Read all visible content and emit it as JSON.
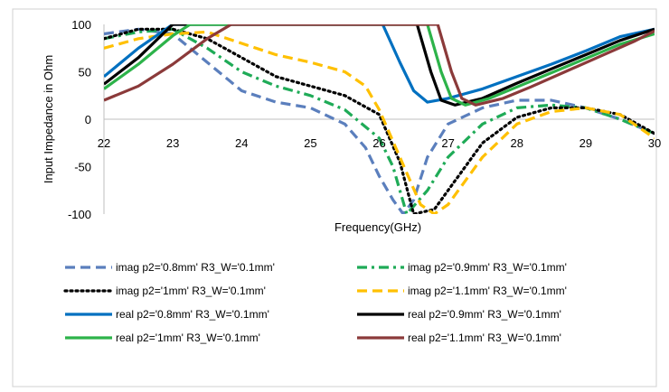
{
  "chart_data": {
    "type": "line",
    "title": "",
    "xlabel": "Frequency(GHz)",
    "ylabel": "Input Impedance in Ohm",
    "xlim": [
      22,
      30
    ],
    "ylim": [
      -100,
      100
    ],
    "xticks": [
      22,
      23,
      24,
      25,
      26,
      27,
      28,
      29,
      30
    ],
    "yticks": [
      -100,
      -50,
      0,
      50,
      100
    ],
    "grid": false,
    "legend_position": "bottom",
    "series": [
      {
        "name": "imag p2='0.8mm' R3_W='0.1mm'",
        "color": "#5b7fbd",
        "dash": "long-dash",
        "points": [
          [
            22,
            90
          ],
          [
            22.5,
            95
          ],
          [
            23,
            90
          ],
          [
            23.5,
            60
          ],
          [
            24,
            30
          ],
          [
            24.5,
            18
          ],
          [
            25,
            12
          ],
          [
            25.5,
            -5
          ],
          [
            25.8,
            -30
          ],
          [
            26,
            -60
          ],
          [
            26.2,
            -85
          ],
          [
            26.35,
            -100
          ],
          [
            26.5,
            -85
          ],
          [
            26.7,
            -40
          ],
          [
            27,
            -5
          ],
          [
            27.5,
            12
          ],
          [
            28,
            20
          ],
          [
            28.5,
            20
          ],
          [
            29,
            12
          ],
          [
            29.5,
            0
          ],
          [
            30,
            -15
          ]
        ]
      },
      {
        "name": "imag p2='0.9mm' R3_W='0.1mm'",
        "color": "#1fab57",
        "dash": "dash-dot",
        "points": [
          [
            22,
            85
          ],
          [
            22.5,
            92
          ],
          [
            23,
            95
          ],
          [
            23.5,
            75
          ],
          [
            24,
            50
          ],
          [
            24.5,
            35
          ],
          [
            25,
            25
          ],
          [
            25.5,
            10
          ],
          [
            26,
            -20
          ],
          [
            26.2,
            -50
          ],
          [
            26.4,
            -100
          ],
          [
            26.7,
            -75
          ],
          [
            27,
            -40
          ],
          [
            27.5,
            -5
          ],
          [
            28,
            12
          ],
          [
            28.5,
            15
          ],
          [
            29,
            12
          ],
          [
            29.5,
            0
          ],
          [
            30,
            -15
          ]
        ]
      },
      {
        "name": "imag p2='1mm' R3_W='0.1mm'",
        "color": "#000000",
        "dash": "dotted",
        "points": [
          [
            22,
            85
          ],
          [
            22.5,
            95
          ],
          [
            23,
            95
          ],
          [
            23.5,
            85
          ],
          [
            24,
            65
          ],
          [
            24.5,
            45
          ],
          [
            25,
            35
          ],
          [
            25.5,
            25
          ],
          [
            26,
            5
          ],
          [
            26.3,
            -45
          ],
          [
            26.5,
            -100
          ],
          [
            26.8,
            -95
          ],
          [
            27,
            -75
          ],
          [
            27.5,
            -25
          ],
          [
            28,
            2
          ],
          [
            28.5,
            12
          ],
          [
            29,
            12
          ],
          [
            29.5,
            5
          ],
          [
            30,
            -15
          ]
        ]
      },
      {
        "name": "imag p2='1.1mm' R3_W='0.1mm'",
        "color": "#ffc000",
        "dash": "long-dash",
        "points": [
          [
            22,
            75
          ],
          [
            22.5,
            85
          ],
          [
            23,
            90
          ],
          [
            23.5,
            92
          ],
          [
            24,
            80
          ],
          [
            24.5,
            68
          ],
          [
            25,
            60
          ],
          [
            25.5,
            50
          ],
          [
            25.8,
            35
          ],
          [
            26,
            10
          ],
          [
            26.3,
            -40
          ],
          [
            26.6,
            -90
          ],
          [
            26.8,
            -100
          ],
          [
            27,
            -90
          ],
          [
            27.5,
            -40
          ],
          [
            28,
            -5
          ],
          [
            28.5,
            8
          ],
          [
            29,
            12
          ],
          [
            29.5,
            5
          ],
          [
            30,
            -20
          ]
        ]
      },
      {
        "name": "real p2='0.8mm' R3_W='0.1mm'",
        "color": "#0070c0",
        "dash": "solid",
        "points": [
          [
            22,
            45
          ],
          [
            22.5,
            75
          ],
          [
            23,
            100
          ],
          [
            26.05,
            100
          ],
          [
            26.3,
            60
          ],
          [
            26.5,
            30
          ],
          [
            26.7,
            18
          ],
          [
            27,
            22
          ],
          [
            27.5,
            32
          ],
          [
            28,
            45
          ],
          [
            28.5,
            58
          ],
          [
            29,
            72
          ],
          [
            29.5,
            87
          ],
          [
            30,
            95
          ]
        ]
      },
      {
        "name": "real p2='0.9mm' R3_W='0.1mm'",
        "color": "#000000",
        "dash": "solid",
        "points": [
          [
            22,
            37
          ],
          [
            22.5,
            65
          ],
          [
            23,
            100
          ],
          [
            26.55,
            100
          ],
          [
            26.75,
            50
          ],
          [
            26.9,
            20
          ],
          [
            27.1,
            15
          ],
          [
            27.5,
            22
          ],
          [
            28,
            38
          ],
          [
            28.5,
            53
          ],
          [
            29,
            68
          ],
          [
            29.5,
            83
          ],
          [
            30,
            95
          ]
        ]
      },
      {
        "name": "real p2='1mm' R3_W='0.1mm'",
        "color": "#2db34a",
        "dash": "solid",
        "points": [
          [
            22,
            32
          ],
          [
            22.5,
            58
          ],
          [
            23,
            88
          ],
          [
            23.25,
            100
          ],
          [
            26.7,
            100
          ],
          [
            26.9,
            50
          ],
          [
            27.05,
            22
          ],
          [
            27.25,
            15
          ],
          [
            27.6,
            22
          ],
          [
            28,
            34
          ],
          [
            28.5,
            49
          ],
          [
            29,
            64
          ],
          [
            29.5,
            79
          ],
          [
            30,
            90
          ]
        ]
      },
      {
        "name": "real p2='1.1mm' R3_W='0.1mm'",
        "color": "#8b3a3a",
        "dash": "solid",
        "points": [
          [
            22,
            20
          ],
          [
            22.5,
            35
          ],
          [
            23,
            58
          ],
          [
            23.5,
            85
          ],
          [
            23.85,
            100
          ],
          [
            26.85,
            100
          ],
          [
            27.05,
            50
          ],
          [
            27.2,
            22
          ],
          [
            27.4,
            15
          ],
          [
            27.8,
            22
          ],
          [
            28.2,
            34
          ],
          [
            28.7,
            50
          ],
          [
            29.2,
            66
          ],
          [
            29.7,
            82
          ],
          [
            30,
            93
          ]
        ]
      }
    ]
  }
}
